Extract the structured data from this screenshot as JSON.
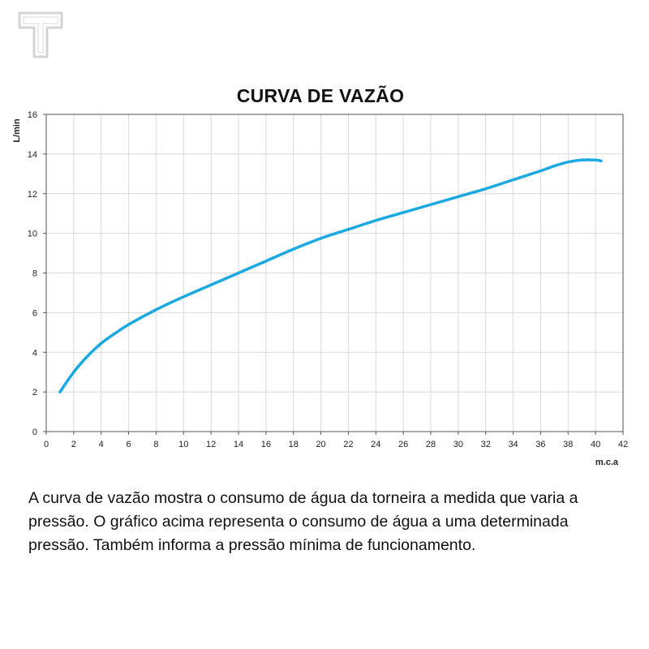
{
  "logo": {
    "letter": "T"
  },
  "chart_data": {
    "type": "line",
    "title": "CURVA DE VAZÃO",
    "xlabel": "m.c.a",
    "ylabel": "L/min",
    "xlim": [
      0,
      42
    ],
    "ylim": [
      0,
      16
    ],
    "xticks": [
      0,
      2,
      4,
      6,
      8,
      10,
      12,
      14,
      16,
      18,
      20,
      22,
      24,
      26,
      28,
      30,
      32,
      34,
      36,
      38,
      40,
      42
    ],
    "yticks": [
      0,
      2,
      4,
      6,
      8,
      10,
      12,
      14,
      16
    ],
    "grid": true,
    "color": "#1ba9e1",
    "series": [
      {
        "x": [
          1,
          2,
          3,
          4,
          5,
          6,
          8,
          10,
          12,
          14,
          16,
          18,
          20,
          22,
          24,
          26,
          28,
          30,
          32,
          34,
          36,
          37,
          38,
          39,
          40,
          40.4
        ],
        "values": [
          2.0,
          3.0,
          3.8,
          4.45,
          4.95,
          5.4,
          6.15,
          6.8,
          7.4,
          8.0,
          8.6,
          9.2,
          9.75,
          10.2,
          10.65,
          11.05,
          11.45,
          11.85,
          12.25,
          12.7,
          13.15,
          13.4,
          13.6,
          13.7,
          13.7,
          13.65
        ]
      }
    ]
  },
  "caption": "A curva de vazão mostra o consumo de água da torneira a medida que varia a pressão. O gráfico acima representa o consumo de água a uma determinada pressão. Também informa a pressão mínima de funcionamento."
}
